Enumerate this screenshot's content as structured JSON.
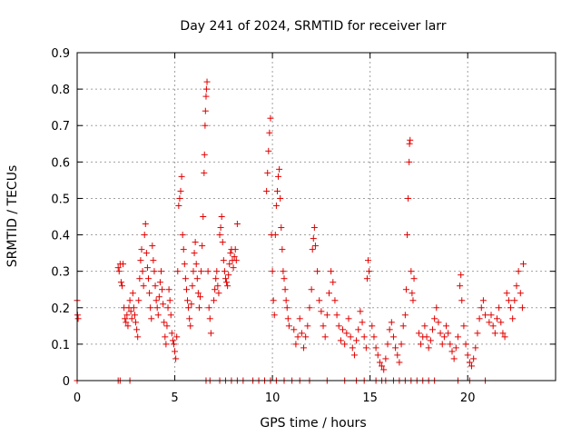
{
  "chart_data": {
    "type": "scatter",
    "title": "Day 241 of 2024, SRMTID for receiver larr",
    "xlabel": "GPS time / hours",
    "ylabel": "SRMTID / TECUs",
    "xlim": [
      0,
      24.5
    ],
    "ylim": [
      0,
      0.9
    ],
    "x_ticks": [
      0,
      5,
      10,
      15,
      20
    ],
    "x_tick_labels": [
      "0",
      "5",
      "10",
      "15",
      "20"
    ],
    "y_ticks": [
      0,
      0.1,
      0.2,
      0.3,
      0.4,
      0.5,
      0.6,
      0.7,
      0.8,
      0.9
    ],
    "y_tick_labels": [
      "0",
      "0.1",
      "0.2",
      "0.3",
      "0.4",
      "0.5",
      "0.6",
      "0.7",
      "0.8",
      "0.9"
    ],
    "grid": true,
    "marker": "+",
    "color": "#e00000",
    "series": [
      {
        "name": "SRMTID",
        "points": [
          [
            0.0,
            0.22
          ],
          [
            0.02,
            0.18
          ],
          [
            0.05,
            0.17
          ],
          [
            0.0,
            0.0
          ],
          [
            2.1,
            0.31
          ],
          [
            2.15,
            0.3
          ],
          [
            2.2,
            0.32
          ],
          [
            2.25,
            0.27
          ],
          [
            2.3,
            0.26
          ],
          [
            2.35,
            0.32
          ],
          [
            2.4,
            0.2
          ],
          [
            2.45,
            0.17
          ],
          [
            2.5,
            0.16
          ],
          [
            2.55,
            0.18
          ],
          [
            2.6,
            0.15
          ],
          [
            2.65,
            0.2
          ],
          [
            2.7,
            0.22
          ],
          [
            2.75,
            0.19
          ],
          [
            2.8,
            0.17
          ],
          [
            2.85,
            0.24
          ],
          [
            2.9,
            0.2
          ],
          [
            2.95,
            0.18
          ],
          [
            3.0,
            0.16
          ],
          [
            3.05,
            0.14
          ],
          [
            3.1,
            0.12
          ],
          [
            3.15,
            0.22
          ],
          [
            3.2,
            0.28
          ],
          [
            3.25,
            0.33
          ],
          [
            3.3,
            0.36
          ],
          [
            3.35,
            0.3
          ],
          [
            3.4,
            0.26
          ],
          [
            3.45,
            0.4
          ],
          [
            3.5,
            0.43
          ],
          [
            3.55,
            0.35
          ],
          [
            3.6,
            0.31
          ],
          [
            3.65,
            0.28
          ],
          [
            3.7,
            0.24
          ],
          [
            3.75,
            0.2
          ],
          [
            3.8,
            0.17
          ],
          [
            3.85,
            0.37
          ],
          [
            3.9,
            0.33
          ],
          [
            3.95,
            0.3
          ],
          [
            4.0,
            0.26
          ],
          [
            4.05,
            0.22
          ],
          [
            4.1,
            0.2
          ],
          [
            4.15,
            0.18
          ],
          [
            4.2,
            0.23
          ],
          [
            4.25,
            0.27
          ],
          [
            4.3,
            0.3
          ],
          [
            4.35,
            0.25
          ],
          [
            4.4,
            0.21
          ],
          [
            4.45,
            0.16
          ],
          [
            4.5,
            0.12
          ],
          [
            4.55,
            0.1
          ],
          [
            4.6,
            0.15
          ],
          [
            4.65,
            0.2
          ],
          [
            4.7,
            0.25
          ],
          [
            4.75,
            0.22
          ],
          [
            4.8,
            0.18
          ],
          [
            4.85,
            0.13
          ],
          [
            4.9,
            0.11
          ],
          [
            4.95,
            0.1
          ],
          [
            5.0,
            0.08
          ],
          [
            5.05,
            0.06
          ],
          [
            5.1,
            0.12
          ],
          [
            5.15,
            0.3
          ],
          [
            5.2,
            0.48
          ],
          [
            5.25,
            0.5
          ],
          [
            5.3,
            0.52
          ],
          [
            5.35,
            0.56
          ],
          [
            5.4,
            0.4
          ],
          [
            5.45,
            0.36
          ],
          [
            5.5,
            0.32
          ],
          [
            5.55,
            0.28
          ],
          [
            5.6,
            0.25
          ],
          [
            5.65,
            0.22
          ],
          [
            5.7,
            0.2
          ],
          [
            5.75,
            0.17
          ],
          [
            5.8,
            0.15
          ],
          [
            5.85,
            0.21
          ],
          [
            5.9,
            0.26
          ],
          [
            5.95,
            0.3
          ],
          [
            6.0,
            0.35
          ],
          [
            6.05,
            0.38
          ],
          [
            6.1,
            0.32
          ],
          [
            6.15,
            0.28
          ],
          [
            6.2,
            0.24
          ],
          [
            6.25,
            0.2
          ],
          [
            6.3,
            0.23
          ],
          [
            6.35,
            0.3
          ],
          [
            6.4,
            0.37
          ],
          [
            6.45,
            0.45
          ],
          [
            6.5,
            0.57
          ],
          [
            6.52,
            0.62
          ],
          [
            6.55,
            0.7
          ],
          [
            6.57,
            0.74
          ],
          [
            6.6,
            0.78
          ],
          [
            6.62,
            0.8
          ],
          [
            6.65,
            0.82
          ],
          [
            6.7,
            0.3
          ],
          [
            6.75,
            0.2
          ],
          [
            6.8,
            0.17
          ],
          [
            6.85,
            0.13
          ],
          [
            7.0,
            0.22
          ],
          [
            7.05,
            0.25
          ],
          [
            7.1,
            0.28
          ],
          [
            7.15,
            0.3
          ],
          [
            7.2,
            0.26
          ],
          [
            7.25,
            0.24
          ],
          [
            7.3,
            0.4
          ],
          [
            7.35,
            0.42
          ],
          [
            7.4,
            0.45
          ],
          [
            7.45,
            0.38
          ],
          [
            7.5,
            0.33
          ],
          [
            7.55,
            0.3
          ],
          [
            7.6,
            0.28
          ],
          [
            7.65,
            0.27
          ],
          [
            7.7,
            0.26
          ],
          [
            7.75,
            0.29
          ],
          [
            7.8,
            0.32
          ],
          [
            7.85,
            0.35
          ],
          [
            7.9,
            0.36
          ],
          [
            7.95,
            0.33
          ],
          [
            8.0,
            0.31
          ],
          [
            8.05,
            0.34
          ],
          [
            8.1,
            0.36
          ],
          [
            8.15,
            0.33
          ],
          [
            8.2,
            0.43
          ],
          [
            9.7,
            0.52
          ],
          [
            9.75,
            0.57
          ],
          [
            9.8,
            0.63
          ],
          [
            9.85,
            0.68
          ],
          [
            9.9,
            0.72
          ],
          [
            9.95,
            0.4
          ],
          [
            10.0,
            0.3
          ],
          [
            10.05,
            0.22
          ],
          [
            10.1,
            0.18
          ],
          [
            10.15,
            0.4
          ],
          [
            10.2,
            0.48
          ],
          [
            10.25,
            0.52
          ],
          [
            10.3,
            0.56
          ],
          [
            10.35,
            0.58
          ],
          [
            10.4,
            0.5
          ],
          [
            10.45,
            0.42
          ],
          [
            10.5,
            0.36
          ],
          [
            10.55,
            0.3
          ],
          [
            10.6,
            0.28
          ],
          [
            10.65,
            0.25
          ],
          [
            10.7,
            0.22
          ],
          [
            10.75,
            0.2
          ],
          [
            10.8,
            0.17
          ],
          [
            10.85,
            0.15
          ],
          [
            11.1,
            0.14
          ],
          [
            11.2,
            0.1
          ],
          [
            11.3,
            0.12
          ],
          [
            11.4,
            0.17
          ],
          [
            11.5,
            0.13
          ],
          [
            11.6,
            0.09
          ],
          [
            11.7,
            0.12
          ],
          [
            11.8,
            0.15
          ],
          [
            11.9,
            0.2
          ],
          [
            12.0,
            0.25
          ],
          [
            12.05,
            0.36
          ],
          [
            12.1,
            0.39
          ],
          [
            12.15,
            0.42
          ],
          [
            12.2,
            0.37
          ],
          [
            12.3,
            0.3
          ],
          [
            12.4,
            0.22
          ],
          [
            12.5,
            0.19
          ],
          [
            12.6,
            0.15
          ],
          [
            12.7,
            0.12
          ],
          [
            12.8,
            0.18
          ],
          [
            12.9,
            0.24
          ],
          [
            13.0,
            0.3
          ],
          [
            13.1,
            0.27
          ],
          [
            13.2,
            0.22
          ],
          [
            13.3,
            0.18
          ],
          [
            13.4,
            0.15
          ],
          [
            13.5,
            0.11
          ],
          [
            13.6,
            0.14
          ],
          [
            13.7,
            0.1
          ],
          [
            13.8,
            0.13
          ],
          [
            13.9,
            0.17
          ],
          [
            14.0,
            0.12
          ],
          [
            14.1,
            0.09
          ],
          [
            14.2,
            0.07
          ],
          [
            14.3,
            0.11
          ],
          [
            14.4,
            0.14
          ],
          [
            14.5,
            0.19
          ],
          [
            14.6,
            0.16
          ],
          [
            14.7,
            0.12
          ],
          [
            14.8,
            0.09
          ],
          [
            14.85,
            0.28
          ],
          [
            14.9,
            0.33
          ],
          [
            14.95,
            0.3
          ],
          [
            15.1,
            0.15
          ],
          [
            15.2,
            0.12
          ],
          [
            15.3,
            0.09
          ],
          [
            15.4,
            0.07
          ],
          [
            15.5,
            0.05
          ],
          [
            15.6,
            0.04
          ],
          [
            15.7,
            0.03
          ],
          [
            15.8,
            0.06
          ],
          [
            15.9,
            0.1
          ],
          [
            16.0,
            0.14
          ],
          [
            16.1,
            0.16
          ],
          [
            16.2,
            0.12
          ],
          [
            16.3,
            0.09
          ],
          [
            16.4,
            0.07
          ],
          [
            16.5,
            0.05
          ],
          [
            16.6,
            0.1
          ],
          [
            16.7,
            0.15
          ],
          [
            16.8,
            0.18
          ],
          [
            16.85,
            0.25
          ],
          [
            16.9,
            0.4
          ],
          [
            16.95,
            0.5
          ],
          [
            17.0,
            0.6
          ],
          [
            17.02,
            0.65
          ],
          [
            17.05,
            0.66
          ],
          [
            17.1,
            0.3
          ],
          [
            17.15,
            0.24
          ],
          [
            17.2,
            0.22
          ],
          [
            17.25,
            0.28
          ],
          [
            17.5,
            0.13
          ],
          [
            17.6,
            0.1
          ],
          [
            17.7,
            0.12
          ],
          [
            17.8,
            0.15
          ],
          [
            17.9,
            0.12
          ],
          [
            18.0,
            0.09
          ],
          [
            18.1,
            0.11
          ],
          [
            18.2,
            0.14
          ],
          [
            18.3,
            0.17
          ],
          [
            18.4,
            0.2
          ],
          [
            18.5,
            0.16
          ],
          [
            18.6,
            0.13
          ],
          [
            18.7,
            0.1
          ],
          [
            18.8,
            0.12
          ],
          [
            18.9,
            0.15
          ],
          [
            19.0,
            0.13
          ],
          [
            19.1,
            0.1
          ],
          [
            19.2,
            0.08
          ],
          [
            19.3,
            0.06
          ],
          [
            19.4,
            0.09
          ],
          [
            19.5,
            0.12
          ],
          [
            19.6,
            0.26
          ],
          [
            19.65,
            0.29
          ],
          [
            19.7,
            0.22
          ],
          [
            19.8,
            0.15
          ],
          [
            19.9,
            0.1
          ],
          [
            20.0,
            0.07
          ],
          [
            20.1,
            0.05
          ],
          [
            20.2,
            0.04
          ],
          [
            20.3,
            0.06
          ],
          [
            20.4,
            0.09
          ],
          [
            20.5,
            0.13
          ],
          [
            20.6,
            0.17
          ],
          [
            20.7,
            0.2
          ],
          [
            20.8,
            0.22
          ],
          [
            20.9,
            0.18
          ],
          [
            21.1,
            0.16
          ],
          [
            21.2,
            0.18
          ],
          [
            21.3,
            0.15
          ],
          [
            21.4,
            0.13
          ],
          [
            21.5,
            0.17
          ],
          [
            21.6,
            0.2
          ],
          [
            21.7,
            0.16
          ],
          [
            21.8,
            0.13
          ],
          [
            21.9,
            0.12
          ],
          [
            22.0,
            0.24
          ],
          [
            22.1,
            0.22
          ],
          [
            22.2,
            0.2
          ],
          [
            22.3,
            0.17
          ],
          [
            22.4,
            0.22
          ],
          [
            22.5,
            0.26
          ],
          [
            22.6,
            0.3
          ],
          [
            22.7,
            0.24
          ],
          [
            22.8,
            0.2
          ],
          [
            22.85,
            0.32
          ],
          [
            2.1,
            0.0
          ],
          [
            2.2,
            0.0
          ],
          [
            2.7,
            0.0
          ],
          [
            6.6,
            0.0
          ],
          [
            6.8,
            0.0
          ],
          [
            7.3,
            0.0
          ],
          [
            7.6,
            0.0
          ],
          [
            7.9,
            0.0
          ],
          [
            8.2,
            0.0
          ],
          [
            8.5,
            0.0
          ],
          [
            9.0,
            0.0
          ],
          [
            9.3,
            0.0
          ],
          [
            9.6,
            0.0
          ],
          [
            9.9,
            0.0
          ],
          [
            10.2,
            0.0
          ],
          [
            10.6,
            0.0
          ],
          [
            11.0,
            0.0
          ],
          [
            11.4,
            0.0
          ],
          [
            11.9,
            0.0
          ],
          [
            12.8,
            0.0
          ],
          [
            13.7,
            0.0
          ],
          [
            14.3,
            0.0
          ],
          [
            14.7,
            0.0
          ],
          [
            15.3,
            0.0
          ],
          [
            15.6,
            0.0
          ],
          [
            15.8,
            0.0
          ],
          [
            16.2,
            0.0
          ],
          [
            16.5,
            0.0
          ],
          [
            16.8,
            0.0
          ],
          [
            17.1,
            0.0
          ],
          [
            17.4,
            0.0
          ],
          [
            17.7,
            0.0
          ],
          [
            18.0,
            0.0
          ],
          [
            18.3,
            0.0
          ],
          [
            19.5,
            0.0
          ],
          [
            20.1,
            0.0
          ],
          [
            20.9,
            0.0
          ]
        ]
      }
    ]
  }
}
